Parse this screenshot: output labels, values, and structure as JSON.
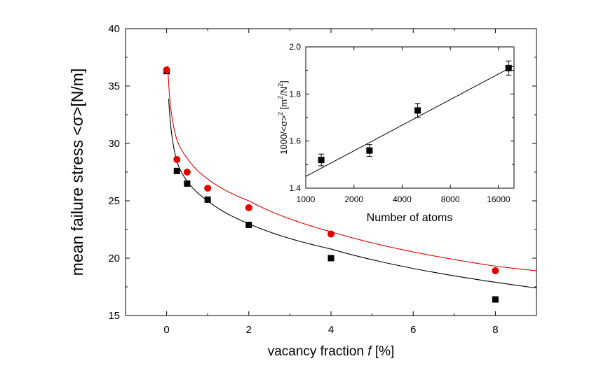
{
  "chart_data": [
    {
      "type": "scatter",
      "title": "",
      "xlabel_prefix": "vacancy fraction ",
      "xlabel_var": "f",
      "xlabel_suffix": " [%]",
      "ylabel": "mean failure stress <σ>[N/m]",
      "xlim": [
        -1,
        9
      ],
      "ylim": [
        15,
        40
      ],
      "xticks": [
        0,
        2,
        4,
        6,
        8
      ],
      "yticks": [
        15,
        20,
        25,
        30,
        35,
        40
      ],
      "grid": false,
      "series": [
        {
          "name": "black squares",
          "marker": "square",
          "color": "#000000",
          "x": [
            0,
            0.25,
            0.5,
            1,
            2,
            4,
            8
          ],
          "y": [
            36.3,
            27.6,
            26.5,
            25.1,
            22.9,
            20.0,
            16.4
          ]
        },
        {
          "name": "red circles",
          "marker": "circle",
          "color": "#e00000",
          "x": [
            0,
            0.25,
            0.5,
            1,
            2,
            4,
            8
          ],
          "y": [
            36.4,
            28.6,
            27.5,
            26.1,
            24.4,
            22.1,
            18.9
          ]
        }
      ],
      "fits": [
        {
          "name": "black fit",
          "color": "#000000",
          "x0": 0.05,
          "x1": 9,
          "x": [
            0.05,
            0.25,
            0.5,
            1,
            2,
            4,
            8,
            9
          ],
          "y": [
            33.9,
            28.4,
            26.7,
            25.0,
            23.0,
            20.8,
            17.9,
            17.4
          ]
        },
        {
          "name": "red fit",
          "color": "#e00000",
          "x0": 0.03,
          "x1": 9,
          "x": [
            0.03,
            0.25,
            0.5,
            1,
            2,
            4,
            8,
            9
          ],
          "y": [
            36.8,
            30.3,
            28.7,
            26.9,
            25.0,
            22.3,
            19.3,
            18.9
          ]
        }
      ]
    },
    {
      "type": "scatter",
      "title": "",
      "inset": true,
      "xlabel": "Number of atoms",
      "ylabel_main": "1000/<σ>",
      "ylabel_sup1": "2",
      "ylabel_bracket": " [m",
      "ylabel_sup2": "2",
      "ylabel_mid": "/N",
      "ylabel_sup3": "2",
      "ylabel_end": "]",
      "xscale": "log",
      "xlim": [
        1000,
        20000
      ],
      "ylim": [
        1.4,
        2.0
      ],
      "xticks": [
        1000,
        2000,
        4000,
        8000,
        16000
      ],
      "yticks": [
        1.4,
        1.6,
        1.8,
        2.0
      ],
      "ytick_labels": [
        "1.4",
        "1.6",
        "1.8",
        "2.0"
      ],
      "grid": false,
      "series": [
        {
          "name": "inset squares",
          "marker": "square",
          "color": "#000000",
          "x": [
            1250,
            2500,
            5000,
            18500
          ],
          "y": [
            1.52,
            1.56,
            1.73,
            1.91
          ],
          "err": [
            0.025,
            0.025,
            0.03,
            0.03
          ]
        }
      ],
      "fits": [
        {
          "name": "inset fit",
          "color": "#000000",
          "x": [
            1000,
            20000
          ],
          "y": [
            1.45,
            1.92
          ]
        }
      ]
    }
  ]
}
